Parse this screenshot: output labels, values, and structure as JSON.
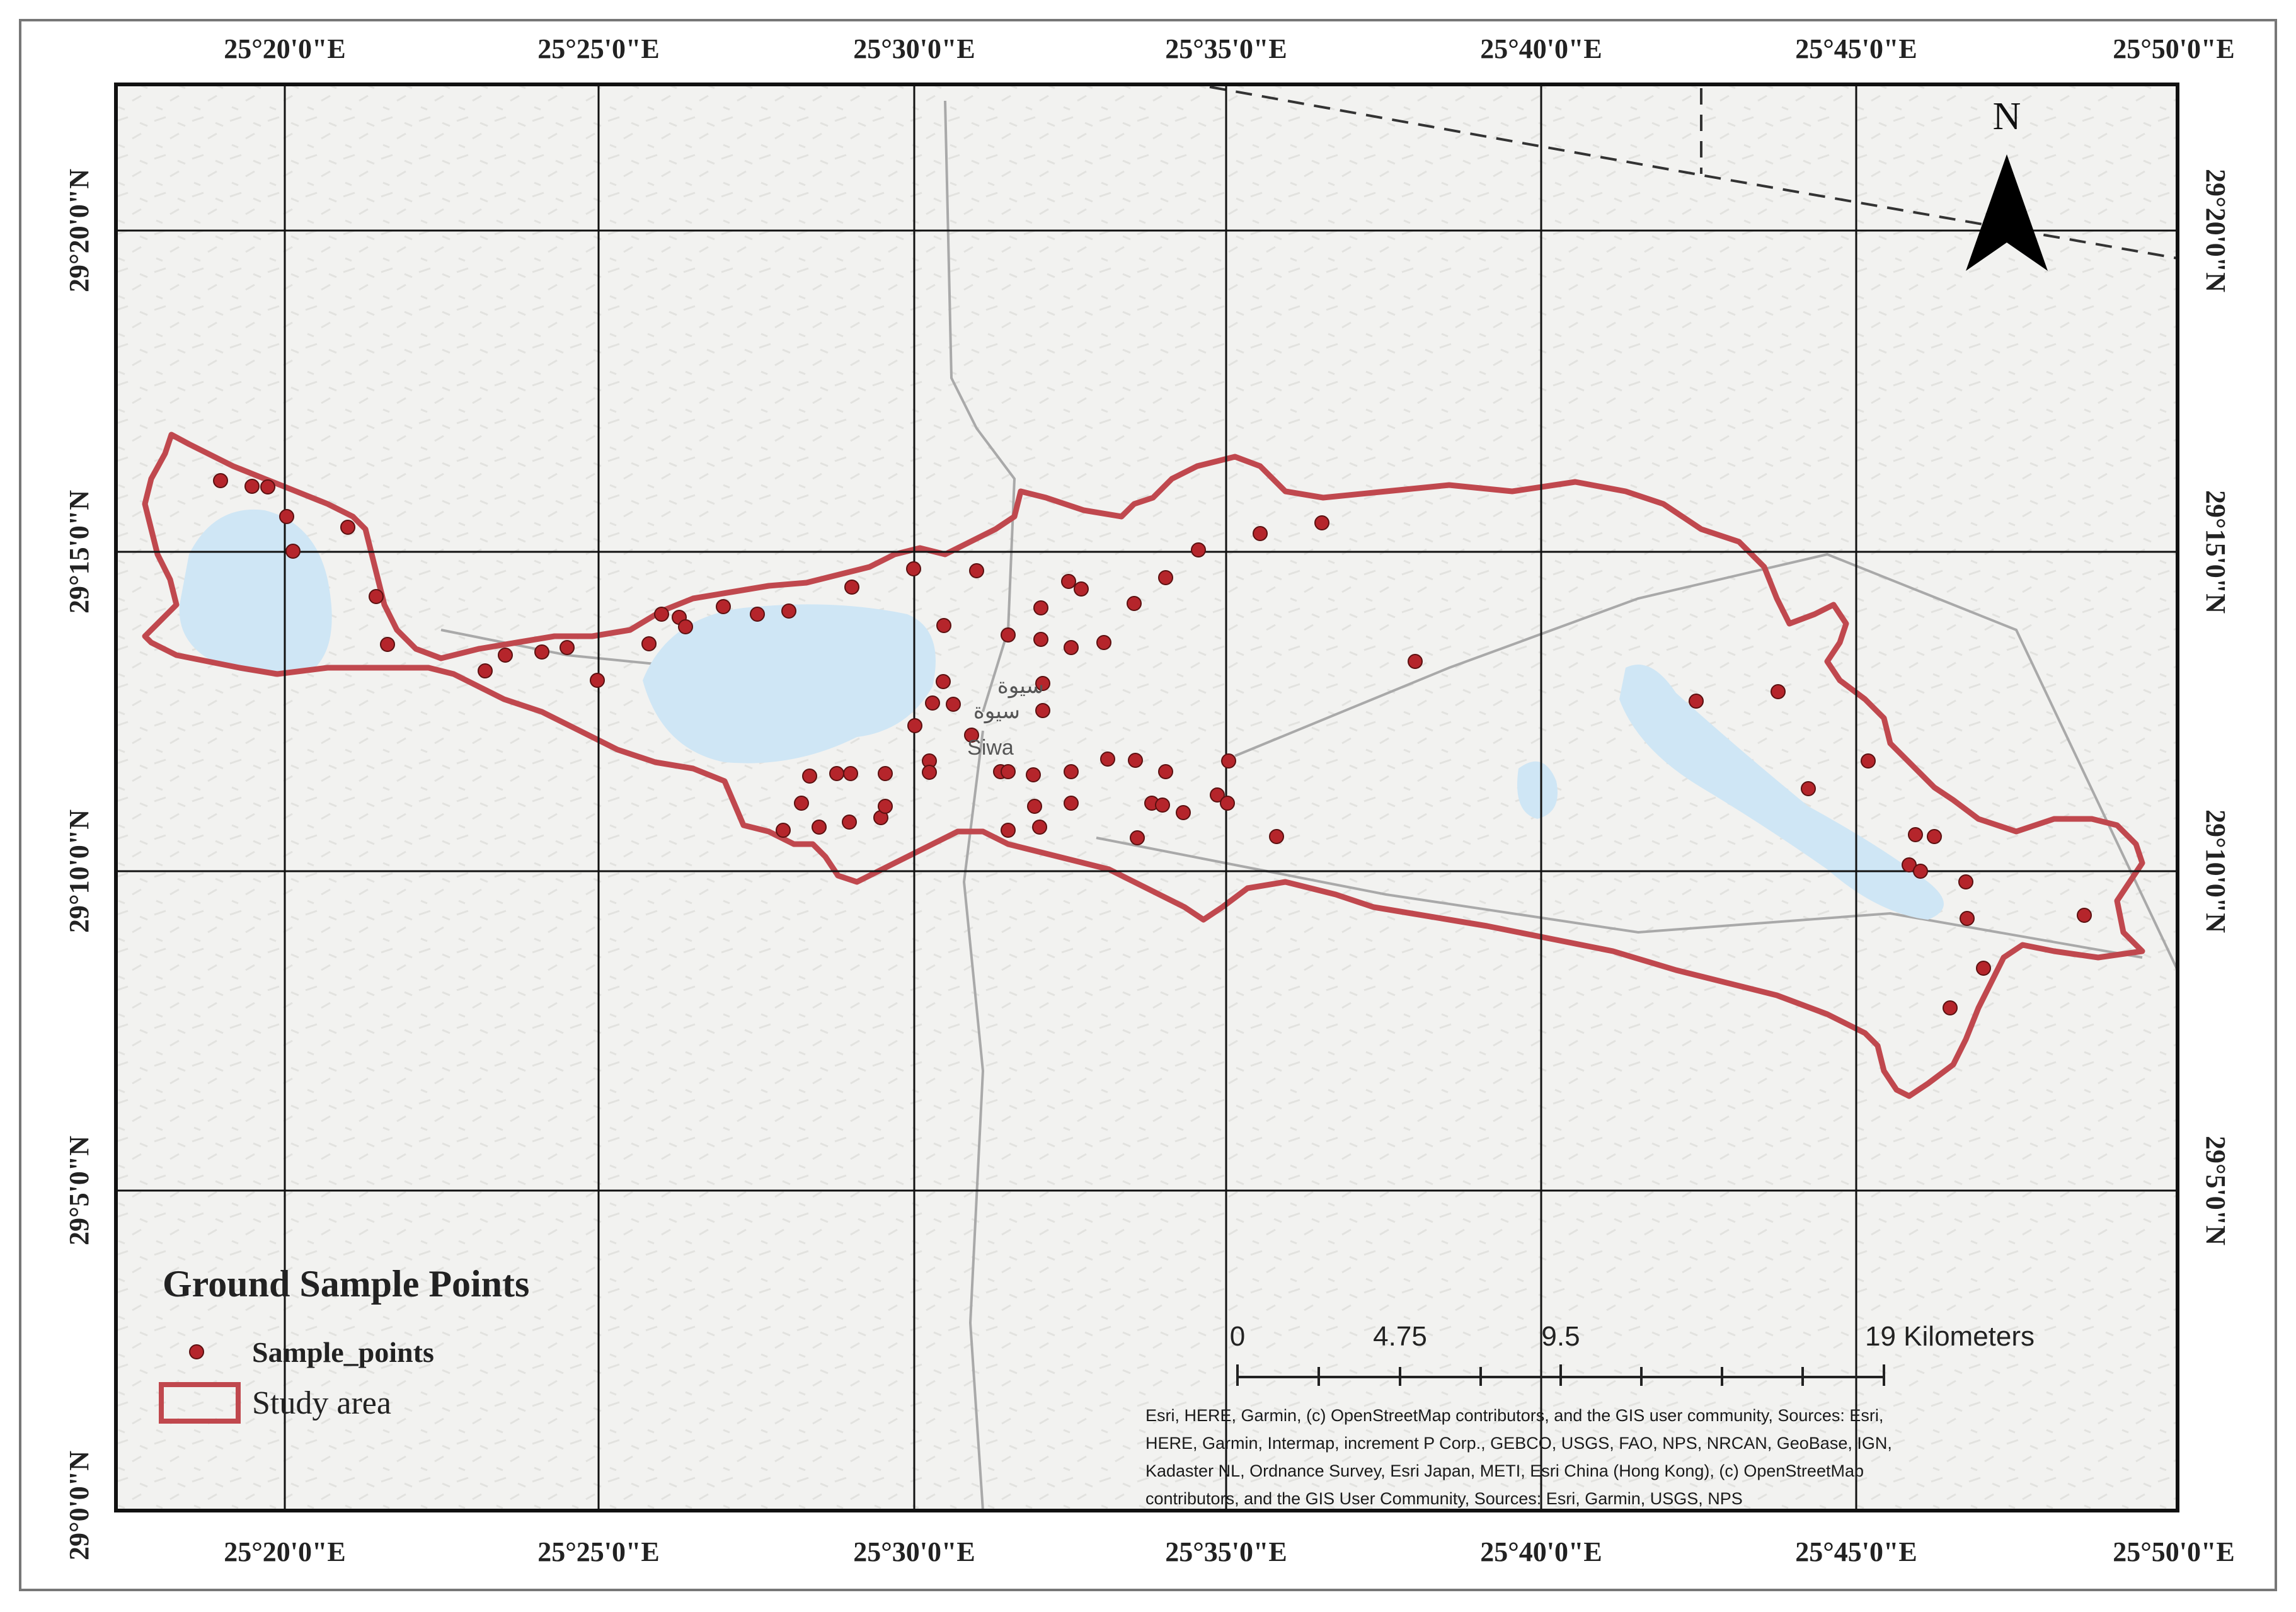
{
  "map": {
    "legend": {
      "title": "Ground Sample Points",
      "items": [
        {
          "label": "Sample_points",
          "symbol": "red-dot-icon",
          "color": "#b5252b"
        },
        {
          "label": "Study area",
          "symbol": "red-outline-box-icon",
          "color": "#c0484e"
        }
      ]
    },
    "north_arrow": {
      "label": "N"
    },
    "scale_bar": {
      "labels": [
        "0",
        "4.75",
        "9.5",
        "19 Kilometers"
      ]
    },
    "place_labels": [
      "سيوة",
      "سيوة",
      "Siwa"
    ],
    "graticule": {
      "top_labels": [
        "25°20'0\"E",
        "25°25'0\"E",
        "25°30'0\"E",
        "25°35'0\"E",
        "25°40'0\"E",
        "25°45'0\"E",
        "25°50'0\"E"
      ],
      "bottom_labels": [
        "25°20'0\"E",
        "25°25'0\"E",
        "25°30'0\"E",
        "25°35'0\"E",
        "25°40'0\"E",
        "25°45'0\"E",
        "25°50'0\"E"
      ],
      "left_labels": [
        "29°20'0\"N",
        "29°15'0\"N",
        "29°10'0\"N",
        "29°5'0\"N",
        "29°0'0\"N"
      ],
      "right_labels": [
        "29°20'0\"N",
        "29°15'0\"N",
        "29°10'0\"N",
        "29°5'0\"N"
      ]
    },
    "credits": [
      "Esri, HERE, Garmin, (c) OpenStreetMap contributors, and the GIS user community, Sources: Esri,",
      "HERE, Garmin, Intermap, increment P Corp., GEBCO, USGS, FAO, NPS, NRCAN, GeoBase, IGN,",
      "Kadaster NL, Ordnance Survey, Esri Japan, METI, Esri China (Hong Kong), (c) OpenStreetMap",
      "contributors, and the GIS User Community, Sources: Esri, Garmin, USGS, NPS"
    ],
    "colors": {
      "sample_point": "#b5252b",
      "study_area": "#c0484e",
      "water": "#cfe6f5",
      "grid": "#111111"
    }
  }
}
